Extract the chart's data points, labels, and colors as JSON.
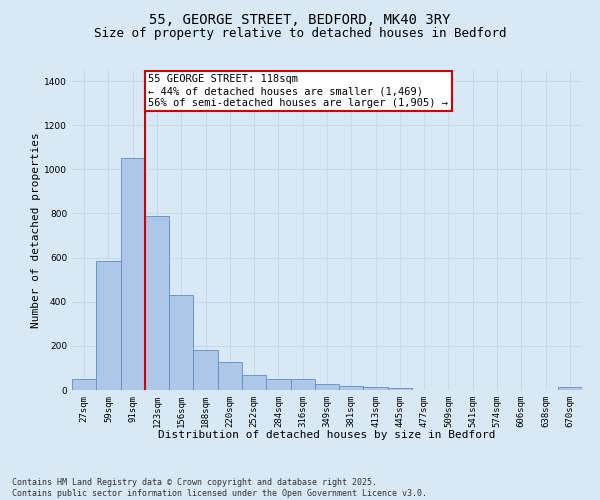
{
  "title_line1": "55, GEORGE STREET, BEDFORD, MK40 3RY",
  "title_line2": "Size of property relative to detached houses in Bedford",
  "xlabel": "Distribution of detached houses by size in Bedford",
  "ylabel": "Number of detached properties",
  "categories": [
    "27sqm",
    "59sqm",
    "91sqm",
    "123sqm",
    "156sqm",
    "188sqm",
    "220sqm",
    "252sqm",
    "284sqm",
    "316sqm",
    "349sqm",
    "381sqm",
    "413sqm",
    "445sqm",
    "477sqm",
    "509sqm",
    "541sqm",
    "574sqm",
    "606sqm",
    "638sqm",
    "670sqm"
  ],
  "values": [
    48,
    585,
    1050,
    790,
    430,
    180,
    125,
    70,
    50,
    50,
    25,
    20,
    15,
    10,
    0,
    0,
    0,
    0,
    0,
    0,
    12
  ],
  "bar_color": "#aec6e8",
  "bar_edge_color": "#5b8fc9",
  "vline_pos": 2.5,
  "vline_color": "#cc0000",
  "annotation_box_text": "55 GEORGE STREET: 118sqm\n← 44% of detached houses are smaller (1,469)\n56% of semi-detached houses are larger (1,905) →",
  "annotation_box_color": "#cc0000",
  "annotation_bg": "#ffffff",
  "ylim": [
    0,
    1450
  ],
  "yticks": [
    0,
    200,
    400,
    600,
    800,
    1000,
    1200,
    1400
  ],
  "grid_color": "#c8d8e8",
  "bg_color": "#d8e8f4",
  "footnote": "Contains HM Land Registry data © Crown copyright and database right 2025.\nContains public sector information licensed under the Open Government Licence v3.0.",
  "title_fontsize": 10,
  "subtitle_fontsize": 9,
  "axis_label_fontsize": 8,
  "tick_fontsize": 6.5,
  "annotation_fontsize": 7.5,
  "footnote_fontsize": 6.0
}
